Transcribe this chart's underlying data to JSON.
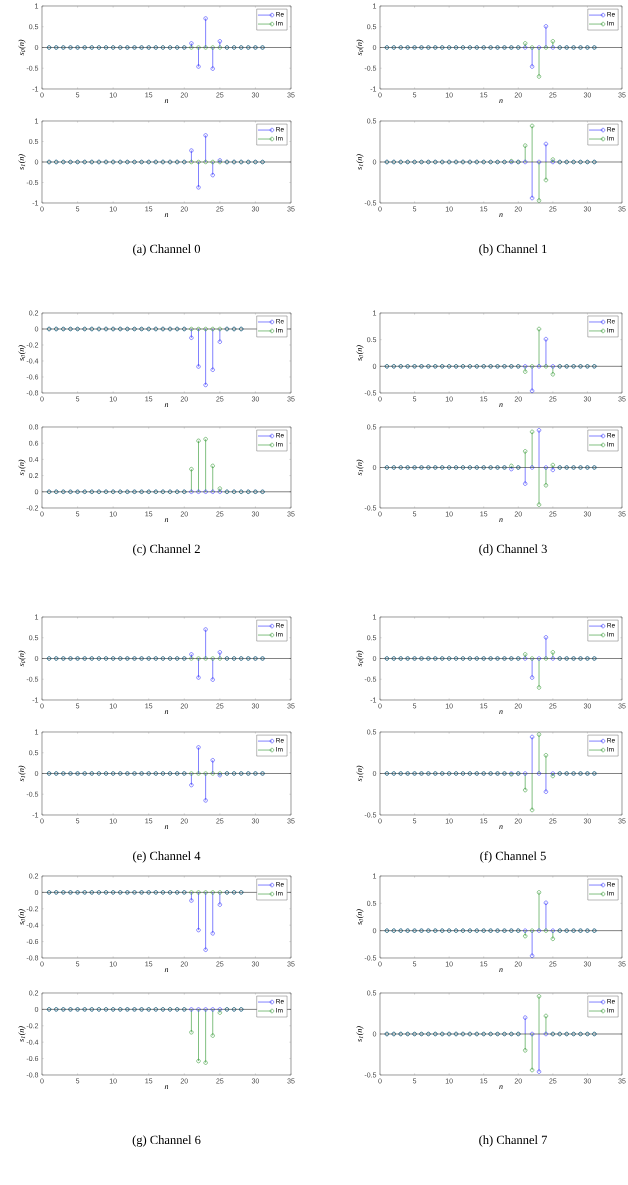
{
  "chart_data": [
    {
      "type": "lollipop",
      "x": [
        1,
        2,
        3,
        4,
        5,
        6,
        7,
        8,
        9,
        10,
        11,
        12,
        13,
        14,
        15,
        16,
        17,
        18,
        19,
        20,
        21,
        22,
        23,
        24,
        25,
        26,
        27,
        28,
        29,
        30,
        31
      ],
      "xlim": [
        0,
        35
      ],
      "xticks": [
        0,
        5,
        10,
        15,
        20,
        25,
        30,
        35
      ],
      "ylim": [
        -1,
        1
      ],
      "yticks": [
        -1,
        -0.5,
        0,
        0.5,
        1
      ],
      "xlabel": "n",
      "ylabel": "s$_{0}$(n)",
      "legend": "top right",
      "marker": "circle",
      "line_style": "solid",
      "ref_lines": [
        {
          "axis": "y",
          "value": 0,
          "color": "#000000"
        }
      ],
      "series": [
        {
          "name": "Re",
          "color": "#0000ff",
          "values": [
            0,
            0,
            0,
            0,
            0,
            0,
            0,
            0,
            0,
            0,
            0,
            0,
            0,
            0,
            0,
            0,
            0,
            0,
            0,
            0,
            0.1,
            -0.46,
            0.7,
            -0.51,
            0.15,
            0,
            0,
            0,
            0,
            0,
            0
          ]
        },
        {
          "name": "Im",
          "color": "#008000",
          "values": [
            0,
            0,
            0,
            0,
            0,
            0,
            0,
            0,
            0,
            0,
            0,
            0,
            0,
            0,
            0,
            0,
            0,
            0,
            0,
            0,
            0,
            0,
            0,
            0,
            0,
            0,
            0,
            0,
            0,
            0,
            0
          ]
        }
      ]
    },
    {
      "type": "lollipop",
      "x": [
        1,
        2,
        3,
        4,
        5,
        6,
        7,
        8,
        9,
        10,
        11,
        12,
        13,
        14,
        15,
        16,
        17,
        18,
        19,
        20,
        21,
        22,
        23,
        24,
        25,
        26,
        27,
        28,
        29,
        30,
        31
      ],
      "xlim": [
        0,
        35
      ],
      "xticks": [
        0,
        5,
        10,
        15,
        20,
        25,
        30,
        35
      ],
      "ylim": [
        -1,
        1
      ],
      "yticks": [
        -1,
        -0.5,
        0,
        0.5,
        1
      ],
      "xlabel": "n",
      "ylabel": "s$_{1}$(n)",
      "legend": "top right",
      "marker": "circle",
      "line_style": "solid",
      "ref_lines": [
        {
          "axis": "y",
          "value": 0,
          "color": "#000000"
        }
      ],
      "annotations": [
        "(a) Channel 0"
      ],
      "series": [
        {
          "name": "Re",
          "color": "#0000ff",
          "values": [
            0,
            0,
            0,
            0,
            0,
            0,
            0,
            0,
            0,
            0,
            0,
            0,
            0,
            0,
            0,
            0,
            0,
            0,
            0,
            0,
            0.28,
            -0.62,
            0.65,
            -0.32,
            0.04,
            0,
            0,
            0,
            0,
            0,
            0
          ]
        },
        {
          "name": "Im",
          "color": "#008000",
          "values": [
            0,
            0,
            0,
            0,
            0,
            0,
            0,
            0,
            0,
            0,
            0,
            0,
            0,
            0,
            0,
            0,
            0,
            0,
            0,
            0,
            0,
            0,
            0,
            0,
            0,
            0,
            0,
            0,
            0,
            0,
            0
          ]
        }
      ]
    },
    {
      "type": "lollipop",
      "x": [
        1,
        2,
        3,
        4,
        5,
        6,
        7,
        8,
        9,
        10,
        11,
        12,
        13,
        14,
        15,
        16,
        17,
        18,
        19,
        20,
        21,
        22,
        23,
        24,
        25,
        26,
        27,
        28,
        29,
        30,
        31
      ],
      "xlim": [
        0,
        35
      ],
      "xticks": [
        0,
        5,
        10,
        15,
        20,
        25,
        30,
        35
      ],
      "ylim": [
        -1,
        1
      ],
      "yticks": [
        -1,
        -0.5,
        0,
        0.5,
        1
      ],
      "xlabel": "n",
      "ylabel": "s$_{0}$(n)",
      "legend": "top right",
      "marker": "circle",
      "line_style": "solid",
      "ref_lines": [
        {
          "axis": "y",
          "value": 0,
          "color": "#000000"
        }
      ],
      "series": [
        {
          "name": "Re",
          "color": "#0000ff",
          "values": [
            0,
            0,
            0,
            0,
            0,
            0,
            0,
            0,
            0,
            0,
            0,
            0,
            0,
            0,
            0,
            0,
            0,
            0,
            0,
            0,
            0,
            -0.46,
            0,
            0.51,
            0,
            0,
            0,
            0,
            0,
            0,
            0
          ]
        },
        {
          "name": "Im",
          "color": "#008000",
          "values": [
            0,
            0,
            0,
            0,
            0,
            0,
            0,
            0,
            0,
            0,
            0,
            0,
            0,
            0,
            0,
            0,
            0,
            0,
            0,
            0,
            0.1,
            0,
            -0.7,
            0,
            0.15,
            0,
            0,
            0,
            0,
            0,
            0
          ]
        }
      ]
    },
    {
      "type": "lollipop",
      "x": [
        1,
        2,
        3,
        4,
        5,
        6,
        7,
        8,
        9,
        10,
        11,
        12,
        13,
        14,
        15,
        16,
        17,
        18,
        19,
        20,
        21,
        22,
        23,
        24,
        25,
        26,
        27,
        28,
        29,
        30,
        31
      ],
      "xlim": [
        0,
        35
      ],
      "xticks": [
        0,
        5,
        10,
        15,
        20,
        25,
        30,
        35
      ],
      "ylim": [
        -0.5,
        0.5
      ],
      "yticks": [
        -0.5,
        0,
        0.5
      ],
      "xlabel": "n",
      "ylabel": "s$_{1}$(n)",
      "legend": "top right",
      "marker": "circle",
      "line_style": "solid",
      "ref_lines": [
        {
          "axis": "y",
          "value": 0,
          "color": "#000000"
        }
      ],
      "annotations": [
        "(b) Channel 1"
      ],
      "series": [
        {
          "name": "Re",
          "color": "#0000ff",
          "values": [
            0,
            0,
            0,
            0,
            0,
            0,
            0,
            0,
            0,
            0,
            0,
            0,
            0,
            0,
            0,
            0,
            0,
            0,
            0,
            0,
            0,
            -0.44,
            0,
            0.22,
            0,
            0,
            0,
            0,
            0,
            0,
            0
          ]
        },
        {
          "name": "Im",
          "color": "#008000",
          "values": [
            0,
            0,
            0,
            0,
            0,
            0,
            0,
            0,
            0,
            0,
            0,
            0,
            0,
            0,
            0,
            0,
            0,
            0,
            0.01,
            0,
            0.2,
            0.44,
            -0.47,
            -0.22,
            0.03,
            0,
            0,
            0,
            0,
            0,
            0
          ]
        }
      ]
    },
    {
      "type": "lollipop",
      "x": [
        1,
        2,
        3,
        4,
        5,
        6,
        7,
        8,
        9,
        10,
        11,
        12,
        13,
        14,
        15,
        16,
        17,
        18,
        19,
        20,
        21,
        22,
        23,
        24,
        25,
        26,
        27,
        28
      ],
      "xlim": [
        0,
        35
      ],
      "xticks": [
        0,
        5,
        10,
        15,
        20,
        25,
        30,
        35
      ],
      "ylim": [
        -0.8,
        0.2
      ],
      "yticks": [
        -0.8,
        -0.6,
        -0.4,
        -0.2,
        0,
        0.2
      ],
      "xlabel": "n",
      "ylabel": "s$_{0}$(n)",
      "legend": "top right",
      "marker": "circle",
      "line_style": "solid",
      "ref_lines": [
        {
          "axis": "y",
          "value": 0,
          "color": "#000000"
        }
      ],
      "series": [
        {
          "name": "Re",
          "color": "#0000ff",
          "values": [
            0,
            0,
            0,
            0,
            0,
            0,
            0,
            0,
            0,
            0,
            0,
            0,
            0,
            0,
            0,
            0,
            0,
            0,
            0,
            0,
            -0.11,
            -0.47,
            -0.7,
            -0.51,
            -0.16,
            0,
            0,
            0
          ]
        },
        {
          "name": "Im",
          "color": "#008000",
          "values": [
            0,
            0,
            0,
            0,
            0,
            0,
            0,
            0,
            0,
            0,
            0,
            0,
            0,
            0,
            0,
            0,
            0,
            0,
            0,
            0,
            0,
            0,
            0,
            0,
            0,
            0,
            0,
            0
          ]
        }
      ]
    },
    {
      "type": "lollipop",
      "x": [
        1,
        2,
        3,
        4,
        5,
        6,
        7,
        8,
        9,
        10,
        11,
        12,
        13,
        14,
        15,
        16,
        17,
        18,
        19,
        20,
        21,
        22,
        23,
        24,
        25,
        26,
        27,
        28,
        29,
        30,
        31
      ],
      "xlim": [
        0,
        35
      ],
      "xticks": [
        0,
        5,
        10,
        15,
        20,
        25,
        30,
        35
      ],
      "ylim": [
        -0.2,
        0.8
      ],
      "yticks": [
        -0.2,
        0,
        0.2,
        0.4,
        0.6,
        0.8
      ],
      "xlabel": "n",
      "ylabel": "s$_{1}$(n)",
      "legend": "top right",
      "marker": "circle",
      "line_style": "solid",
      "ref_lines": [
        {
          "axis": "y",
          "value": 0,
          "color": "#000000"
        }
      ],
      "annotations": [
        "(c) Channel 2"
      ],
      "series": [
        {
          "name": "Re",
          "color": "#0000ff",
          "values": [
            0,
            0,
            0,
            0,
            0,
            0,
            0,
            0,
            0,
            0,
            0,
            0,
            0,
            0,
            0,
            0,
            0,
            0,
            0,
            0,
            0,
            0,
            0,
            0,
            0,
            0,
            0,
            0,
            0,
            0,
            0
          ]
        },
        {
          "name": "Im",
          "color": "#008000",
          "values": [
            0,
            0,
            0,
            0,
            0,
            0,
            0,
            0,
            0,
            0,
            0,
            0,
            0,
            0,
            0,
            0,
            0,
            0,
            0,
            0,
            0.28,
            0.63,
            0.65,
            0.32,
            0.04,
            0,
            0,
            0,
            0,
            0,
            0
          ]
        }
      ]
    },
    {
      "type": "lollipop",
      "x": [
        1,
        2,
        3,
        4,
        5,
        6,
        7,
        8,
        9,
        10,
        11,
        12,
        13,
        14,
        15,
        16,
        17,
        18,
        19,
        20,
        21,
        22,
        23,
        24,
        25,
        26,
        27,
        28,
        29,
        30,
        31
      ],
      "xlim": [
        0,
        35
      ],
      "xticks": [
        0,
        5,
        10,
        15,
        20,
        25,
        30,
        35
      ],
      "ylim": [
        -0.5,
        1
      ],
      "yticks": [
        -0.5,
        0,
        0.5,
        1
      ],
      "xlabel": "n",
      "ylabel": "s$_{0}$(n)",
      "legend": "top right",
      "marker": "circle",
      "line_style": "solid",
      "ref_lines": [
        {
          "axis": "y",
          "value": 0,
          "color": "#000000"
        }
      ],
      "series": [
        {
          "name": "Re",
          "color": "#0000ff",
          "values": [
            0,
            0,
            0,
            0,
            0,
            0,
            0,
            0,
            0,
            0,
            0,
            0,
            0,
            0,
            0,
            0,
            0,
            0,
            0,
            0,
            0,
            -0.46,
            0,
            0.51,
            0,
            0,
            0,
            0,
            0,
            0,
            0
          ]
        },
        {
          "name": "Im",
          "color": "#008000",
          "values": [
            0,
            0,
            0,
            0,
            0,
            0,
            0,
            0,
            0,
            0,
            0,
            0,
            0,
            0,
            0,
            0,
            0,
            0,
            0,
            0,
            -0.1,
            0,
            0.7,
            0,
            -0.15,
            0,
            0,
            0,
            0,
            0,
            0
          ]
        }
      ]
    },
    {
      "type": "lollipop",
      "x": [
        1,
        2,
        3,
        4,
        5,
        6,
        7,
        8,
        9,
        10,
        11,
        12,
        13,
        14,
        15,
        16,
        17,
        18,
        19,
        20,
        21,
        22,
        23,
        24,
        25,
        26,
        27,
        28,
        29,
        30,
        31
      ],
      "xlim": [
        0,
        35
      ],
      "xticks": [
        0,
        5,
        10,
        15,
        20,
        25,
        30,
        35
      ],
      "ylim": [
        -0.5,
        0.5
      ],
      "yticks": [
        -0.5,
        0,
        0.5
      ],
      "xlabel": "n",
      "ylabel": "s$_{1}$(n)",
      "legend": "top right",
      "marker": "circle",
      "line_style": "solid",
      "ref_lines": [
        {
          "axis": "y",
          "value": 0,
          "color": "#000000"
        }
      ],
      "annotations": [
        "(d) Channel 3"
      ],
      "series": [
        {
          "name": "Re",
          "color": "#0000ff",
          "values": [
            0,
            0,
            0,
            0,
            0,
            0,
            0,
            0,
            0,
            0,
            0,
            0,
            0,
            0,
            0,
            0,
            0,
            0,
            -0.02,
            0,
            -0.2,
            0,
            0.46,
            0,
            -0.03,
            0,
            0,
            0,
            0,
            0,
            0
          ]
        },
        {
          "name": "Im",
          "color": "#008000",
          "values": [
            0,
            0,
            0,
            0,
            0,
            0,
            0,
            0,
            0,
            0,
            0,
            0,
            0,
            0,
            0,
            0,
            0,
            0,
            0.02,
            0,
            0.2,
            0.44,
            -0.46,
            -0.22,
            0.03,
            0,
            0,
            0,
            0,
            0,
            0
          ]
        }
      ]
    },
    {
      "type": "lollipop",
      "x": [
        1,
        2,
        3,
        4,
        5,
        6,
        7,
        8,
        9,
        10,
        11,
        12,
        13,
        14,
        15,
        16,
        17,
        18,
        19,
        20,
        21,
        22,
        23,
        24,
        25,
        26,
        27,
        28,
        29,
        30,
        31
      ],
      "xlim": [
        0,
        35
      ],
      "xticks": [
        0,
        5,
        10,
        15,
        20,
        25,
        30,
        35
      ],
      "ylim": [
        -1,
        1
      ],
      "yticks": [
        -1,
        -0.5,
        0,
        0.5,
        1
      ],
      "xlabel": "n",
      "ylabel": "s$_{0}$(n)",
      "legend": "top right",
      "marker": "circle",
      "line_style": "solid",
      "ref_lines": [
        {
          "axis": "y",
          "value": 0,
          "color": "#000000"
        }
      ],
      "series": [
        {
          "name": "Re",
          "color": "#0000ff",
          "values": [
            0,
            0,
            0,
            0,
            0,
            0,
            0,
            0,
            0,
            0,
            0,
            0,
            0,
            0,
            0,
            0,
            0,
            0,
            0,
            0,
            0.1,
            -0.46,
            0.7,
            -0.51,
            0.15,
            0,
            0,
            0,
            0,
            0,
            0
          ]
        },
        {
          "name": "Im",
          "color": "#008000",
          "values": [
            0,
            0,
            0,
            0,
            0,
            0,
            0,
            0,
            0,
            0,
            0,
            0,
            0,
            0,
            0,
            0,
            0,
            0,
            0,
            0,
            0,
            0,
            0,
            0,
            0,
            0,
            0,
            0,
            0,
            0,
            0
          ]
        }
      ]
    },
    {
      "type": "lollipop",
      "x": [
        1,
        2,
        3,
        4,
        5,
        6,
        7,
        8,
        9,
        10,
        11,
        12,
        13,
        14,
        15,
        16,
        17,
        18,
        19,
        20,
        21,
        22,
        23,
        24,
        25,
        26,
        27,
        28,
        29,
        30,
        31
      ],
      "xlim": [
        0,
        35
      ],
      "xticks": [
        0,
        5,
        10,
        15,
        20,
        25,
        30,
        35
      ],
      "ylim": [
        -1,
        1
      ],
      "yticks": [
        -1,
        -0.5,
        0,
        0.5,
        1
      ],
      "xlabel": "n",
      "ylabel": "s$_{1}$(n)",
      "legend": "top right",
      "marker": "circle",
      "line_style": "solid",
      "ref_lines": [
        {
          "axis": "y",
          "value": 0,
          "color": "#000000"
        }
      ],
      "annotations": [
        "(e) Channel 4"
      ],
      "series": [
        {
          "name": "Re",
          "color": "#0000ff",
          "values": [
            0,
            0,
            0,
            0,
            0,
            0,
            0,
            0,
            0,
            0,
            0,
            0,
            0,
            0,
            0,
            0,
            0,
            0,
            0,
            0,
            -0.28,
            0.63,
            -0.65,
            0.32,
            -0.04,
            0,
            0,
            0,
            0,
            0,
            0
          ]
        },
        {
          "name": "Im",
          "color": "#008000",
          "values": [
            0,
            0,
            0,
            0,
            0,
            0,
            0,
            0,
            0,
            0,
            0,
            0,
            0,
            0,
            0,
            0,
            0,
            0,
            0,
            0,
            0,
            0,
            0,
            0,
            0,
            0,
            0,
            0,
            0,
            0,
            0
          ]
        }
      ]
    },
    {
      "type": "lollipop",
      "x": [
        1,
        2,
        3,
        4,
        5,
        6,
        7,
        8,
        9,
        10,
        11,
        12,
        13,
        14,
        15,
        16,
        17,
        18,
        19,
        20,
        21,
        22,
        23,
        24,
        25,
        26,
        27,
        28,
        29,
        30,
        31
      ],
      "xlim": [
        0,
        35
      ],
      "xticks": [
        0,
        5,
        10,
        15,
        20,
        25,
        30,
        35
      ],
      "ylim": [
        -1,
        1
      ],
      "yticks": [
        -1,
        -0.5,
        0,
        0.5,
        1
      ],
      "xlabel": "n",
      "ylabel": "s$_{0}$(n)",
      "legend": "top right",
      "marker": "circle",
      "line_style": "solid",
      "ref_lines": [
        {
          "axis": "y",
          "value": 0,
          "color": "#000000"
        }
      ],
      "series": [
        {
          "name": "Re",
          "color": "#0000ff",
          "values": [
            0,
            0,
            0,
            0,
            0,
            0,
            0,
            0,
            0,
            0,
            0,
            0,
            0,
            0,
            0,
            0,
            0,
            0,
            0,
            0,
            0,
            -0.46,
            0,
            0.51,
            0,
            0,
            0,
            0,
            0,
            0,
            0
          ]
        },
        {
          "name": "Im",
          "color": "#008000",
          "values": [
            0,
            0,
            0,
            0,
            0,
            0,
            0,
            0,
            0,
            0,
            0,
            0,
            0,
            0,
            0,
            0,
            0,
            0,
            0,
            0,
            0.1,
            0,
            -0.7,
            0,
            0.15,
            0,
            0,
            0,
            0,
            0,
            0
          ]
        }
      ]
    },
    {
      "type": "lollipop",
      "x": [
        1,
        2,
        3,
        4,
        5,
        6,
        7,
        8,
        9,
        10,
        11,
        12,
        13,
        14,
        15,
        16,
        17,
        18,
        19,
        20,
        21,
        22,
        23,
        24,
        25,
        26,
        27,
        28,
        29,
        30,
        31
      ],
      "xlim": [
        0,
        35
      ],
      "xticks": [
        0,
        5,
        10,
        15,
        20,
        25,
        30,
        35
      ],
      "ylim": [
        -0.5,
        0.5
      ],
      "yticks": [
        -0.5,
        0,
        0.5
      ],
      "xlabel": "n",
      "ylabel": "s$_{1}$(n)",
      "legend": "top right",
      "marker": "circle",
      "line_style": "solid",
      "ref_lines": [
        {
          "axis": "y",
          "value": 0,
          "color": "#000000"
        }
      ],
      "annotations": [
        "(f) Channel 5"
      ],
      "series": [
        {
          "name": "Re",
          "color": "#0000ff",
          "values": [
            0,
            0,
            0,
            0,
            0,
            0,
            0,
            0,
            0,
            0,
            0,
            0,
            0,
            0,
            0,
            0,
            0,
            0,
            0,
            0,
            0,
            0.44,
            0,
            -0.22,
            0,
            0,
            0,
            0,
            0,
            0,
            0
          ]
        },
        {
          "name": "Im",
          "color": "#008000",
          "values": [
            0,
            0,
            0,
            0,
            0,
            0,
            0,
            0,
            0,
            0,
            0,
            0,
            0,
            0,
            0,
            0,
            0,
            0,
            -0.01,
            0,
            -0.2,
            -0.44,
            0.47,
            0.22,
            -0.03,
            0,
            0,
            0,
            0,
            0,
            0
          ]
        }
      ]
    },
    {
      "type": "lollipop",
      "x": [
        1,
        2,
        3,
        4,
        5,
        6,
        7,
        8,
        9,
        10,
        11,
        12,
        13,
        14,
        15,
        16,
        17,
        18,
        19,
        20,
        21,
        22,
        23,
        24,
        25,
        26,
        27,
        28
      ],
      "xlim": [
        0,
        35
      ],
      "xticks": [
        0,
        5,
        10,
        15,
        20,
        25,
        30,
        35
      ],
      "ylim": [
        -0.8,
        0.2
      ],
      "yticks": [
        -0.8,
        -0.6,
        -0.4,
        -0.2,
        0,
        0.2
      ],
      "xlabel": "n",
      "ylabel": "s$_{0}$(n)",
      "legend": "top right",
      "marker": "circle",
      "line_style": "solid",
      "ref_lines": [
        {
          "axis": "y",
          "value": 0,
          "color": "#000000"
        }
      ],
      "series": [
        {
          "name": "Re",
          "color": "#0000ff",
          "values": [
            0,
            0,
            0,
            0,
            0,
            0,
            0,
            0,
            0,
            0,
            0,
            0,
            0,
            0,
            0,
            0,
            0,
            0,
            0,
            0,
            -0.1,
            -0.46,
            -0.7,
            -0.5,
            -0.15,
            0,
            0,
            0
          ]
        },
        {
          "name": "Im",
          "color": "#008000",
          "values": [
            0,
            0,
            0,
            0,
            0,
            0,
            0,
            0,
            0,
            0,
            0,
            0,
            0,
            0,
            0,
            0,
            0,
            0,
            0,
            0,
            0,
            0,
            0,
            0,
            0,
            0,
            0,
            0
          ]
        }
      ]
    },
    {
      "type": "lollipop",
      "x": [
        1,
        2,
        3,
        4,
        5,
        6,
        7,
        8,
        9,
        10,
        11,
        12,
        13,
        14,
        15,
        16,
        17,
        18,
        19,
        20,
        21,
        22,
        23,
        24,
        25,
        26,
        27,
        28
      ],
      "xlim": [
        0,
        35
      ],
      "xticks": [
        0,
        5,
        10,
        15,
        20,
        25,
        30,
        35
      ],
      "ylim": [
        -0.8,
        0.2
      ],
      "yticks": [
        -0.8,
        -0.6,
        -0.4,
        -0.2,
        0,
        0.2
      ],
      "xlabel": "n",
      "ylabel": "s$_{1}$(n)",
      "legend": "top right",
      "marker": "circle",
      "line_style": "solid",
      "ref_lines": [
        {
          "axis": "y",
          "value": 0,
          "color": "#000000"
        }
      ],
      "annotations": [
        "(g) Channel 6"
      ],
      "series": [
        {
          "name": "Re",
          "color": "#0000ff",
          "values": [
            0,
            0,
            0,
            0,
            0,
            0,
            0,
            0,
            0,
            0,
            0,
            0,
            0,
            0,
            0,
            0,
            0,
            0,
            0,
            0,
            0,
            0,
            0,
            0,
            0,
            0,
            0,
            0
          ]
        },
        {
          "name": "Im",
          "color": "#008000",
          "values": [
            0,
            0,
            0,
            0,
            0,
            0,
            0,
            0,
            0,
            0,
            0,
            0,
            0,
            0,
            0,
            0,
            0,
            0,
            0,
            0,
            -0.28,
            -0.63,
            -0.65,
            -0.32,
            -0.04,
            0,
            0,
            0
          ]
        }
      ]
    },
    {
      "type": "lollipop",
      "x": [
        1,
        2,
        3,
        4,
        5,
        6,
        7,
        8,
        9,
        10,
        11,
        12,
        13,
        14,
        15,
        16,
        17,
        18,
        19,
        20,
        21,
        22,
        23,
        24,
        25,
        26,
        27,
        28,
        29,
        30,
        31
      ],
      "xlim": [
        0,
        35
      ],
      "xticks": [
        0,
        5,
        10,
        15,
        20,
        25,
        30,
        35
      ],
      "ylim": [
        -0.5,
        1
      ],
      "yticks": [
        -0.5,
        0,
        0.5,
        1
      ],
      "xlabel": "n",
      "ylabel": "s$_{0}$(n)",
      "legend": "top right",
      "marker": "circle",
      "line_style": "solid",
      "ref_lines": [
        {
          "axis": "y",
          "value": 0,
          "color": "#000000"
        }
      ],
      "series": [
        {
          "name": "Re",
          "color": "#0000ff",
          "values": [
            0,
            0,
            0,
            0,
            0,
            0,
            0,
            0,
            0,
            0,
            0,
            0,
            0,
            0,
            0,
            0,
            0,
            0,
            0,
            0,
            0,
            -0.46,
            0,
            0.51,
            0,
            0,
            0,
            0,
            0,
            0,
            0
          ]
        },
        {
          "name": "Im",
          "color": "#008000",
          "values": [
            0,
            0,
            0,
            0,
            0,
            0,
            0,
            0,
            0,
            0,
            0,
            0,
            0,
            0,
            0,
            0,
            0,
            0,
            0,
            0,
            -0.1,
            0,
            0.7,
            0,
            -0.15,
            0,
            0,
            0,
            0,
            0,
            0
          ]
        }
      ]
    },
    {
      "type": "lollipop",
      "x": [
        1,
        2,
        3,
        4,
        5,
        6,
        7,
        8,
        9,
        10,
        11,
        12,
        13,
        14,
        15,
        16,
        17,
        18,
        19,
        20,
        21,
        22,
        23,
        24,
        25,
        26,
        27,
        28,
        29,
        30,
        31
      ],
      "xlim": [
        0,
        35
      ],
      "xticks": [
        0,
        5,
        10,
        15,
        20,
        25,
        30,
        35
      ],
      "ylim": [
        -0.5,
        0.5
      ],
      "yticks": [
        -0.5,
        0,
        0.5
      ],
      "xlabel": "n",
      "ylabel": "s$_{1}$(n)",
      "legend": "top right",
      "marker": "circle",
      "line_style": "solid",
      "ref_lines": [
        {
          "axis": "y",
          "value": 0,
          "color": "#000000"
        }
      ],
      "annotations": [
        "(h) Channel 7"
      ],
      "series": [
        {
          "name": "Re",
          "color": "#0000ff",
          "values": [
            0,
            0,
            0,
            0,
            0,
            0,
            0,
            0,
            0,
            0,
            0,
            0,
            0,
            0,
            0,
            0,
            0,
            0,
            0,
            0,
            0.2,
            0,
            -0.46,
            0,
            0,
            0,
            0,
            0,
            0,
            0,
            0
          ]
        },
        {
          "name": "Im",
          "color": "#008000",
          "values": [
            0,
            0,
            0,
            0,
            0,
            0,
            0,
            0,
            0,
            0,
            0,
            0,
            0,
            0,
            0,
            0,
            0,
            0,
            0,
            0,
            -0.2,
            -0.44,
            0.46,
            0.22,
            0,
            0,
            0,
            0,
            0,
            0,
            0
          ]
        }
      ]
    }
  ]
}
